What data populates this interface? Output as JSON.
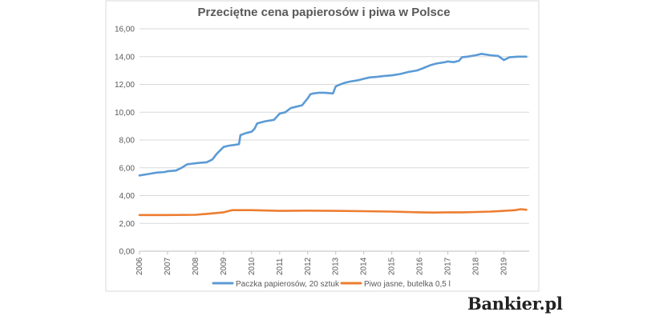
{
  "logo": "Bankier.pl",
  "chart_data": {
    "type": "line",
    "title": "Przeciętne cena papierosów i piwa w Polsce",
    "xlabel": "",
    "ylabel": "",
    "xlim": [
      2006,
      2019.9
    ],
    "ylim": [
      0,
      16
    ],
    "y_ticks": [
      "0,00",
      "2,00",
      "4,00",
      "6,00",
      "8,00",
      "10,00",
      "12,00",
      "14,00",
      "16,00"
    ],
    "x_ticks": [
      "2006",
      "2007",
      "2008",
      "2009",
      "2010",
      "2011",
      "2012",
      "2013",
      "2014",
      "2015",
      "2016",
      "2017",
      "2018",
      "2019"
    ],
    "grid": "horizontal",
    "legend_position": "bottom",
    "series": [
      {
        "name": "Paczka papierosów, 20 sztuk",
        "color": "#5B9BD5",
        "x": [
          2006.0,
          2006.3,
          2006.6,
          2006.9,
          2007.0,
          2007.3,
          2007.5,
          2007.7,
          2007.9,
          2008.1,
          2008.4,
          2008.6,
          2008.75,
          2008.9,
          2009.0,
          2009.2,
          2009.4,
          2009.55,
          2009.6,
          2009.8,
          2010.0,
          2010.1,
          2010.2,
          2010.5,
          2010.8,
          2011.0,
          2011.2,
          2011.4,
          2011.6,
          2011.8,
          2012.0,
          2012.1,
          2012.2,
          2012.4,
          2012.6,
          2012.9,
          2013.0,
          2013.1,
          2013.3,
          2013.5,
          2013.8,
          2014.0,
          2014.2,
          2014.5,
          2014.7,
          2015.0,
          2015.3,
          2015.6,
          2015.9,
          2016.1,
          2016.4,
          2016.6,
          2016.9,
          2017.0,
          2017.2,
          2017.4,
          2017.5,
          2017.7,
          2018.0,
          2018.2,
          2018.5,
          2018.8,
          2019.0,
          2019.2,
          2019.5,
          2019.8
        ],
        "y": [
          5.45,
          5.55,
          5.65,
          5.7,
          5.75,
          5.8,
          6.0,
          6.25,
          6.3,
          6.35,
          6.4,
          6.6,
          7.0,
          7.3,
          7.5,
          7.6,
          7.65,
          7.7,
          8.35,
          8.5,
          8.6,
          8.8,
          9.2,
          9.35,
          9.45,
          9.9,
          10.0,
          10.3,
          10.4,
          10.5,
          11.0,
          11.3,
          11.35,
          11.4,
          11.4,
          11.35,
          11.85,
          11.95,
          12.1,
          12.2,
          12.3,
          12.4,
          12.5,
          12.55,
          12.6,
          12.65,
          12.75,
          12.9,
          13.0,
          13.15,
          13.4,
          13.5,
          13.6,
          13.65,
          13.6,
          13.7,
          13.95,
          14.0,
          14.1,
          14.2,
          14.1,
          14.05,
          13.75,
          13.95,
          14.0,
          14.0
        ]
      },
      {
        "name": "Piwo jasne, butelka 0,5 l",
        "color": "#ED7D31",
        "x": [
          2006.0,
          2007.0,
          2008.0,
          2008.5,
          2009.0,
          2009.3,
          2010.0,
          2011.0,
          2012.0,
          2013.0,
          2014.0,
          2015.0,
          2016.0,
          2016.5,
          2017.0,
          2017.5,
          2018.0,
          2018.5,
          2019.0,
          2019.4,
          2019.6,
          2019.8
        ],
        "y": [
          2.6,
          2.6,
          2.62,
          2.7,
          2.8,
          2.95,
          2.95,
          2.9,
          2.92,
          2.9,
          2.88,
          2.85,
          2.8,
          2.78,
          2.8,
          2.8,
          2.82,
          2.85,
          2.9,
          2.95,
          3.02,
          2.98
        ]
      }
    ]
  }
}
